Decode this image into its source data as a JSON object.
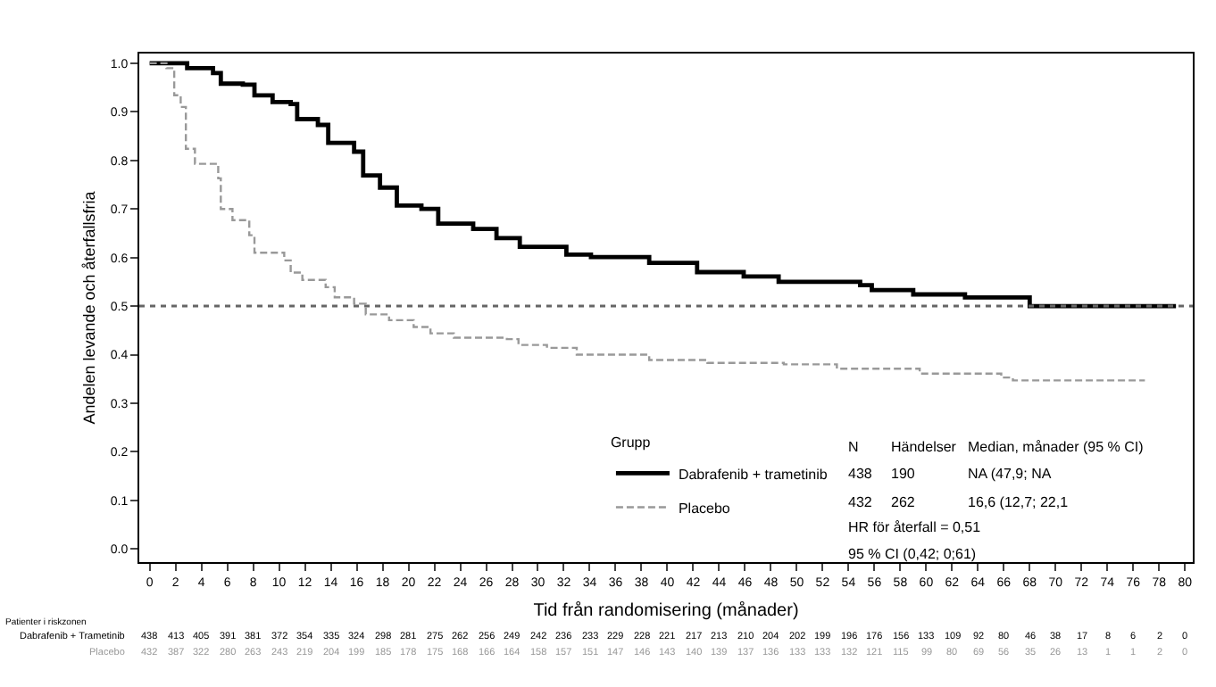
{
  "chart_data": {
    "type": "step",
    "xlabel": "Tid från randomisering (månader)",
    "ylabel": "Andelen levande och återfallsfria",
    "legend_title": "Grupp",
    "series": [
      {
        "name": "Dabrafenib + trametinib",
        "color": "#000000",
        "line_style": "solid",
        "x": [
          0,
          2.9,
          4.9,
          5.5,
          7.2,
          8.1,
          9.5,
          10.9,
          11.4,
          13.0,
          13.8,
          15.8,
          16.5,
          17.8,
          19.1,
          21.0,
          22.3,
          25,
          26.8,
          28.6,
          32.2,
          34.1,
          38.6,
          42.3,
          45.9,
          48.6,
          54.9,
          55.8,
          59,
          63,
          68,
          79.3
        ],
        "values": [
          1.0,
          0.99,
          0.98,
          0.958,
          0.956,
          0.934,
          0.92,
          0.916,
          0.885,
          0.873,
          0.836,
          0.818,
          0.769,
          0.744,
          0.707,
          0.7,
          0.67,
          0.659,
          0.64,
          0.622,
          0.606,
          0.601,
          0.589,
          0.57,
          0.561,
          0.55,
          0.543,
          0.533,
          0.524,
          0.518,
          0.5,
          0.5
        ]
      },
      {
        "name": "Placebo",
        "color": "#999999",
        "line_style": "dashed",
        "x": [
          0,
          1.3,
          1.9,
          2.4,
          2.8,
          3.5,
          5.3,
          5.5,
          6.4,
          7.7,
          8.1,
          10.4,
          10.9,
          11.8,
          13.6,
          14.3,
          15.8,
          16.7,
          18.5,
          20.4,
          21.7,
          23.5,
          27.6,
          28.5,
          30.7,
          33,
          38.6,
          43.1,
          49,
          53.1,
          59.5,
          65.8,
          66.7,
          76.9
        ],
        "values": [
          1.0,
          0.99,
          0.934,
          0.91,
          0.824,
          0.793,
          0.763,
          0.7,
          0.677,
          0.646,
          0.61,
          0.594,
          0.569,
          0.554,
          0.539,
          0.518,
          0.505,
          0.483,
          0.471,
          0.457,
          0.444,
          0.435,
          0.432,
          0.42,
          0.414,
          0.4,
          0.389,
          0.383,
          0.38,
          0.371,
          0.361,
          0.353,
          0.347,
          0.347
        ]
      }
    ],
    "xlim": [
      -0.8,
      80.6
    ],
    "ylim": [
      -0.027,
      1.02
    ],
    "xticks": [
      0,
      2,
      4,
      6,
      8,
      10,
      12,
      14,
      16,
      18,
      20,
      22,
      24,
      26,
      28,
      30,
      32,
      34,
      36,
      38,
      40,
      42,
      44,
      46,
      48,
      50,
      52,
      54,
      56,
      58,
      60,
      62,
      64,
      66,
      68,
      70,
      72,
      74,
      76,
      78,
      80
    ],
    "yticks": [
      {
        "value": 0,
        "label": "0.0"
      },
      {
        "value": 0.1,
        "label": "0.1"
      },
      {
        "value": 0.2,
        "label": "0.2"
      },
      {
        "value": 0.3,
        "label": "0.3"
      },
      {
        "value": 0.4,
        "label": "0.4"
      },
      {
        "value": 0.5,
        "label": "0.5"
      },
      {
        "value": 0.6,
        "label": "0.6"
      },
      {
        "value": 0.7,
        "label": "0.7"
      },
      {
        "value": 0.8,
        "label": "0.8"
      },
      {
        "value": 0.9,
        "label": "0.9"
      },
      {
        "value": 1.0,
        "label": "1.0"
      }
    ],
    "ref_lines": [
      {
        "axis": "y",
        "value": 0.5,
        "color": "#666666",
        "line_style": "dotted"
      }
    ],
    "legend": "bottom right",
    "marker": "none",
    "annotations": [
      "N",
      "Händelser",
      "Median, månader (95 % CI)",
      "438",
      "190",
      "NA (47,9; NA",
      "432",
      "262",
      "16,6 (12,7; 22,1",
      "HR för återfall = 0,51",
      "95 % CI (0,42; 0;61)",
      "Patienter i riskzonen",
      "Dabrafenib + Trametinib",
      "438 413 405 391 381 372 354 335 324 298 281 275 262 256 249 242 236 233 229 228 221 217 213 210 204 202 199 196 176 156 133 109 92 80 46 38 17 8 6 2 0",
      "Placebo",
      "432 387 322 280 263 243 219 204 199 185 178 175 168 166 164 158 157 151 147 146 143 140 139 137 136 133 133 132 121 115 99 80 69 56 35 26 13 1 1 2 0"
    ]
  }
}
